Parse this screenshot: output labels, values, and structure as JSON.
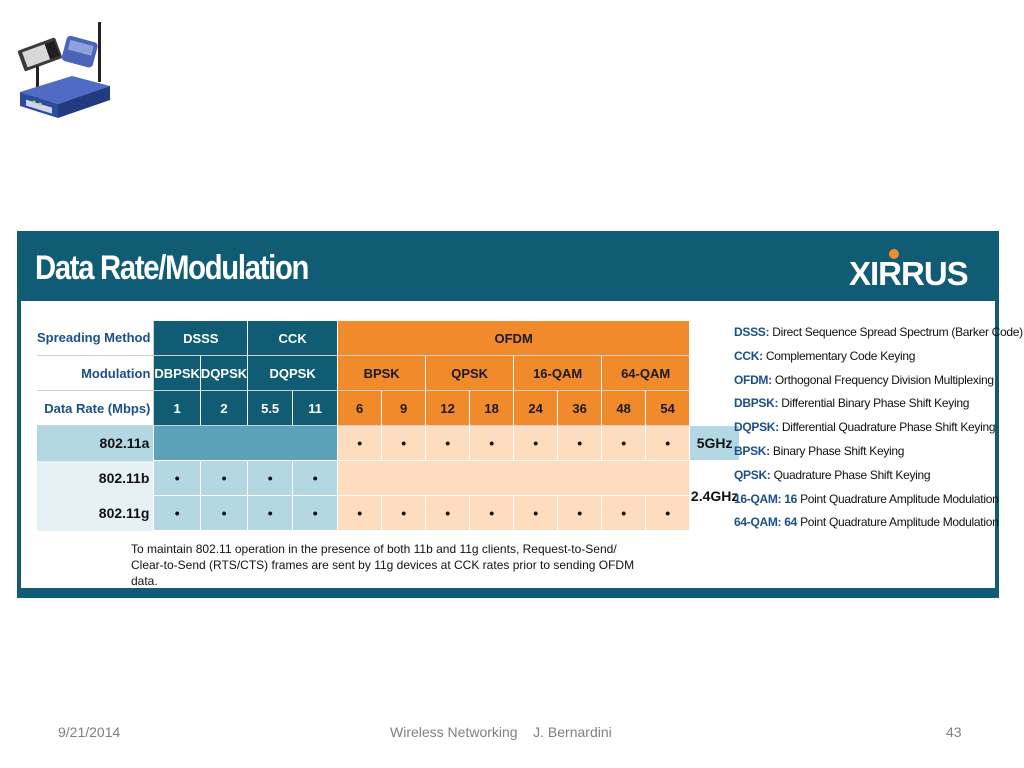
{
  "slide": {
    "title": "Data Rate/Modulation",
    "logo_text": "XIRRUS",
    "clipart_icon": "wireless-router-and-cards-icon"
  },
  "table": {
    "row_labels": {
      "spreading": "Spreading Method",
      "modulation": "Modulation",
      "rate": "Data Rate (Mbps)"
    },
    "spreading": {
      "dsss": "DSSS",
      "cck": "CCK",
      "ofdm": "OFDM"
    },
    "modulation": {
      "dbpsk": "DBPSK",
      "dqpsk": "DQPSK",
      "cck_dqpsk": "DQPSK",
      "bpsk": "BPSK",
      "qpsk": "QPSK",
      "qam16": "16-QAM",
      "qam64": "64-QAM"
    },
    "rates": [
      "1",
      "2",
      "5.5",
      "11",
      "6",
      "9",
      "12",
      "18",
      "24",
      "36",
      "48",
      "54"
    ],
    "standards": [
      "802.11a",
      "802.11b",
      "802.11g"
    ],
    "dot": "•",
    "bands": {
      "b5": "5GHz",
      "b24": "2.4GHz"
    }
  },
  "note": {
    "line1": "To maintain 802.11 operation in the presence of both 11b and 11g clients, Request-to-Send/",
    "line2": "Clear-to-Send (RTS/CTS) frames are sent by 11g devices at CCK rates prior to sending OFDM data."
  },
  "legend": [
    {
      "abbr": "DSSS:",
      "text": "Direct Sequence Spread Spectrum (Barker Code)"
    },
    {
      "abbr": "CCK:",
      "text": "Complementary Code Keying"
    },
    {
      "abbr": "OFDM:",
      "text": "Orthogonal Frequency Division Multiplexing"
    },
    {
      "abbr": "DBPSK:",
      "text": "Differential Binary Phase Shift Keying"
    },
    {
      "abbr": "DQPSK:",
      "text": "Differential Quadrature Phase Shift Keying"
    },
    {
      "abbr": "BPSK:",
      "text": "Binary Phase Shift Keying"
    },
    {
      "abbr": "QPSK:",
      "text": "Quadrature Phase Shift Keying"
    },
    {
      "abbr": "16-QAM: 16",
      "text": "Point Quadrature Amplitude Modulation"
    },
    {
      "abbr": "64-QAM: 64",
      "text": "Point Quadrature Amplitude Modulation"
    }
  ],
  "footer": {
    "date": "9/21/2014",
    "center": "Wireless Networking    J. Bernardini",
    "page": "43"
  },
  "colors": {
    "teal": "#0f5c74",
    "orange": "#f18a2a",
    "light_blue": "#b3d7e3",
    "peach": "#fddcc0",
    "label_blue": "#1c4f8a"
  }
}
